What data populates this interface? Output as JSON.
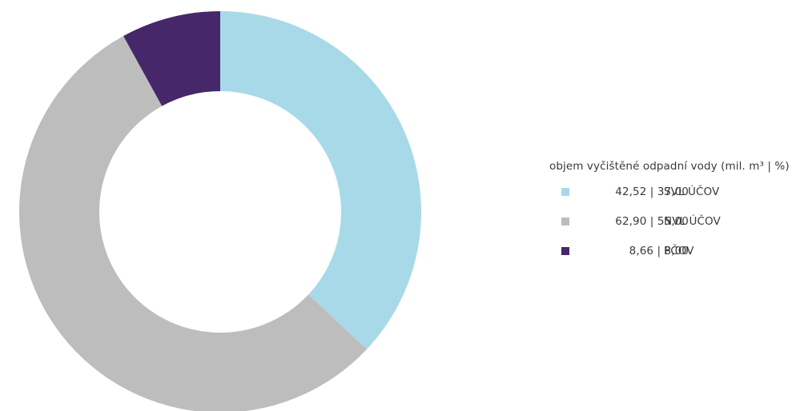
{
  "chart_data": {
    "type": "pie",
    "variant": "donut",
    "legend_title": "objem vyčištěné odpadní vody (mil. m³ | %)",
    "legend_position": "right",
    "series": [
      {
        "label": "SVL ÚČOV",
        "value_text": "42,52 | 37,00",
        "volume": 42.52,
        "percent": 37.0,
        "color": "#a8d9e8"
      },
      {
        "label": "NVL ÚČOV",
        "value_text": "62,90 | 55,00",
        "volume": 62.9,
        "percent": 55.0,
        "color": "#bdbdbd"
      },
      {
        "label": "PČOV",
        "value_text": "8,66 | 8,00",
        "volume": 8.66,
        "percent": 8.0,
        "color": "#46286a"
      }
    ]
  }
}
